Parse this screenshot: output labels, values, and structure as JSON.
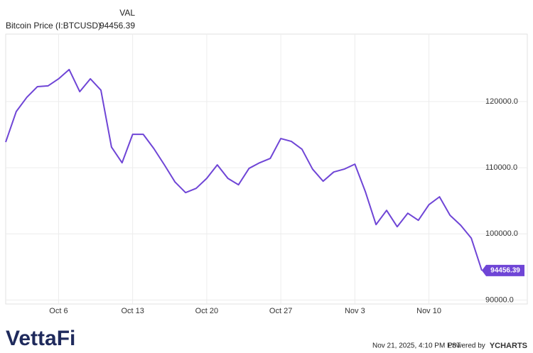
{
  "chart_data": {
    "type": "line",
    "legend_header": "VAL",
    "categories": [
      null,
      null,
      null,
      null,
      null,
      "Oct 6",
      null,
      null,
      null,
      null,
      null,
      null,
      "Oct 13",
      null,
      null,
      null,
      null,
      null,
      null,
      "Oct 20",
      null,
      null,
      null,
      null,
      null,
      null,
      "Oct 27",
      null,
      null,
      null,
      null,
      null,
      null,
      "Nov 3",
      null,
      null,
      null,
      null,
      null,
      null,
      "Nov 10",
      null,
      null,
      null,
      null,
      null
    ],
    "series": [
      {
        "name": "Bitcoin Price (I:BTCUSD)",
        "color": "#6f45d6",
        "values": [
          113870,
          118500,
          120650,
          122260,
          122370,
          123440,
          124840,
          121500,
          123440,
          121720,
          113120,
          110750,
          115050,
          115050,
          112900,
          110430,
          107850,
          106240,
          106880,
          108390,
          110430,
          108390,
          107420,
          109900,
          110750,
          111400,
          114410,
          113980,
          112800,
          109790,
          107960,
          109350,
          109790,
          110540,
          106350,
          101400,
          103550,
          101080,
          103120,
          102050,
          104410,
          105600,
          102800,
          101300,
          99360,
          94456.39
        ]
      }
    ],
    "ylim": [
      89400,
      130200
    ],
    "yticks": [
      {
        "value": 90000,
        "label": "90000.0"
      },
      {
        "value": 100000,
        "label": "100000.0"
      },
      {
        "value": 110000,
        "label": "110000.0"
      },
      {
        "value": 120000,
        "label": "120000.0"
      }
    ],
    "grid": true
  },
  "footer": {
    "logo": "VettaFi",
    "timestamp": "Nov 21, 2025, 4:10 PM EST",
    "powered": "Powered by",
    "brand": "YCHARTS"
  }
}
